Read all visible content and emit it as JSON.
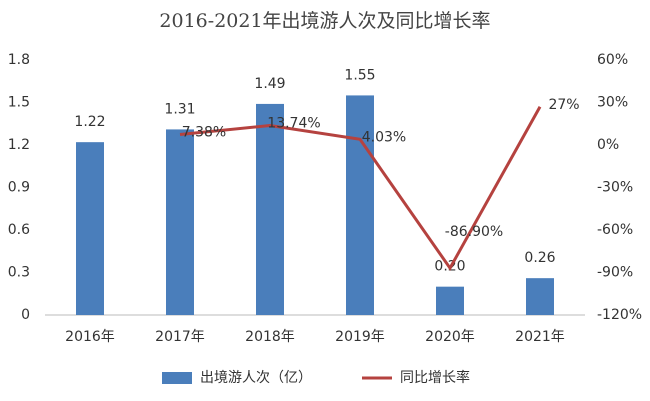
{
  "chart_data": {
    "type": "bar_line",
    "title": "2016-2021年出境游人次及同比增长率",
    "categories": [
      "2016年",
      "2017年",
      "2018年",
      "2019年",
      "2020年",
      "2021年"
    ],
    "series": [
      {
        "name": "出境游人次（亿）",
        "type": "bar",
        "color": "#4a7ebb",
        "values": [
          1.22,
          1.31,
          1.49,
          1.55,
          0.2,
          0.26
        ],
        "value_labels": [
          "1.22",
          "1.31",
          "1.49",
          "1.55",
          "0.20",
          "0.26"
        ]
      },
      {
        "name": "同比增长率",
        "type": "line",
        "axis": "y2",
        "color": "#b5423f",
        "values": [
          null,
          7.38,
          13.74,
          4.03,
          -86.9,
          27
        ],
        "value_labels": [
          null,
          "7.38%",
          "13.74%",
          "4.03%",
          "-86.90%",
          "27%"
        ]
      }
    ],
    "ylim": [
      0,
      1.8
    ],
    "yticks": [
      0,
      0.3,
      0.6,
      0.9,
      1.2,
      1.5,
      1.8
    ],
    "y2lim": [
      -120,
      60
    ],
    "y2ticks": [
      {
        "value": -120,
        "label": "-120%"
      },
      {
        "value": -90,
        "label": "-90%"
      },
      {
        "value": -60,
        "label": "-60%"
      },
      {
        "value": -30,
        "label": "-30%"
      },
      {
        "value": 0,
        "label": "0%"
      },
      {
        "value": 30,
        "label": "30%"
      },
      {
        "value": 60,
        "label": "60%"
      }
    ],
    "grid": false,
    "legend": "bottom"
  }
}
